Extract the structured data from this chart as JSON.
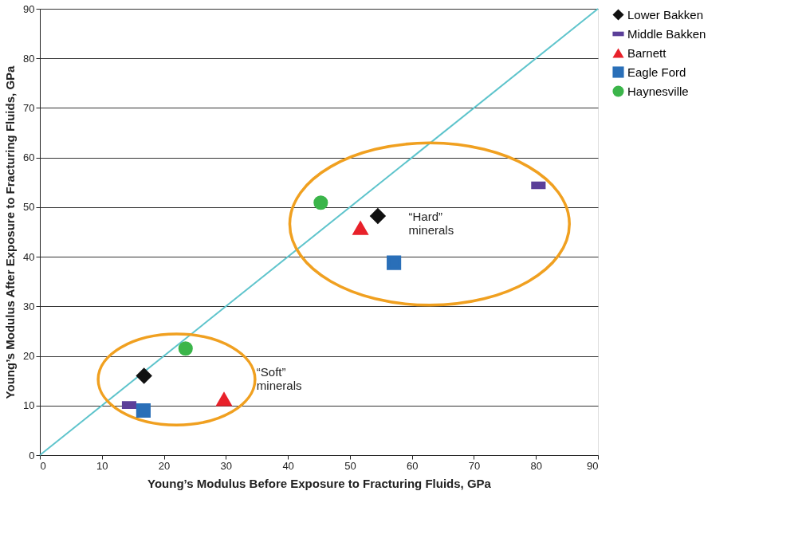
{
  "chart_data": {
    "type": "scatter",
    "xlabel": "Young’s Modulus Before Exposure to Fracturing Fluids, GPa",
    "ylabel": "Young’s Modulus After Exposure to Fracturing Fluids, GPa",
    "xlim": [
      0,
      90
    ],
    "ylim": [
      0,
      90
    ],
    "xticks": [
      0,
      10,
      20,
      30,
      40,
      50,
      60,
      70,
      80,
      90
    ],
    "yticks": [
      0,
      10,
      20,
      30,
      40,
      50,
      60,
      70,
      80,
      90
    ],
    "grid": "y",
    "legend": "right",
    "series": [
      {
        "name": "Lower Bakken",
        "color": "#111111",
        "marker": "diamond",
        "x": [
          16.8,
          54.5
        ],
        "values": [
          16.0,
          48.2
        ]
      },
      {
        "name": "Middle Bakken",
        "color": "#5b3f99",
        "marker": "square",
        "x": [
          14.4,
          80.4
        ],
        "values": [
          10.1,
          54.4
        ]
      },
      {
        "name": "Barnett",
        "color": "#e8212a",
        "marker": "triangle",
        "x": [
          29.7,
          51.7
        ],
        "values": [
          11.2,
          45.7
        ]
      },
      {
        "name": "Eagle Ford",
        "color": "#2a6fb8",
        "marker": "square",
        "x": [
          16.7,
          57.1
        ],
        "values": [
          9.0,
          38.8
        ]
      },
      {
        "name": "Haynesville",
        "color": "#3bb54a",
        "marker": "circle",
        "x": [
          23.5,
          45.3
        ],
        "values": [
          21.5,
          50.9
        ]
      },
      {
        "type": "line",
        "color": "#5ec4cc",
        "x": [
          0,
          90
        ],
        "values": [
          0,
          90
        ]
      }
    ],
    "annotations": [
      "“Soft”\nminerals",
      "“Hard”\nminerals"
    ]
  }
}
